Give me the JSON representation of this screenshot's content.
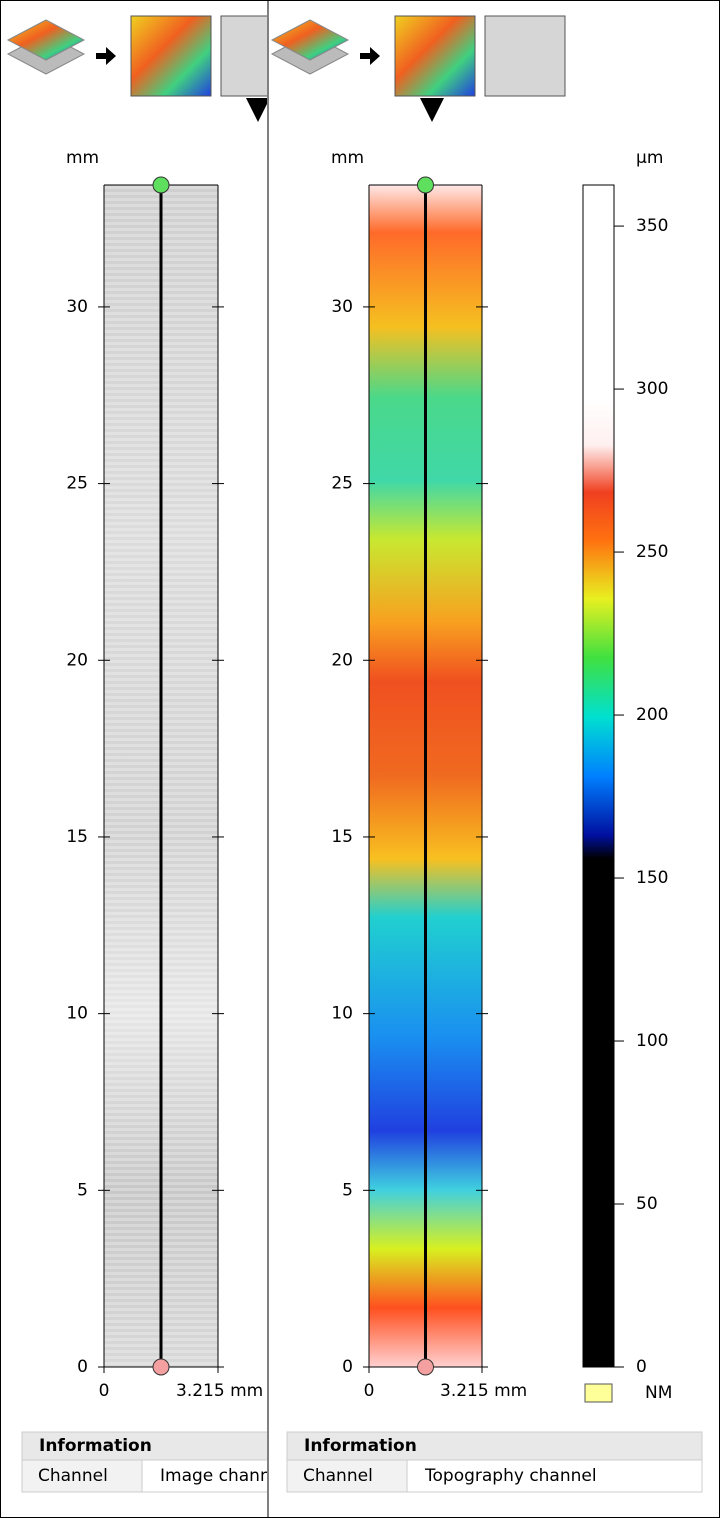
{
  "panels": [
    {
      "y_unit": "mm",
      "ylim": [
        0,
        33.45
      ],
      "yticks": [
        0,
        5,
        10,
        15,
        20,
        25,
        30
      ],
      "xlim": [
        0,
        3.215
      ],
      "xticks": [
        0,
        {
          "value": 3.215,
          "label": "3.215 mm"
        }
      ],
      "info": {
        "title": "Information",
        "rows": [
          [
            "Channel",
            "Image channel"
          ]
        ]
      }
    },
    {
      "y_unit": "mm",
      "ylim": [
        0,
        33.45
      ],
      "yticks": [
        0,
        5,
        10,
        15,
        20,
        25,
        30
      ],
      "xlim": [
        0,
        3.215
      ],
      "xticks": [
        0,
        {
          "value": 3.215,
          "label": "3.215 mm"
        }
      ],
      "info": {
        "title": "Information",
        "rows": [
          [
            "Channel",
            "Topography channel"
          ]
        ]
      }
    }
  ],
  "colorbar": {
    "unit": "μm",
    "lim": [
      0,
      362.6
    ],
    "ticks": [
      0,
      50,
      100,
      150,
      200,
      250,
      300,
      350
    ],
    "nm_label": "NM"
  }
}
